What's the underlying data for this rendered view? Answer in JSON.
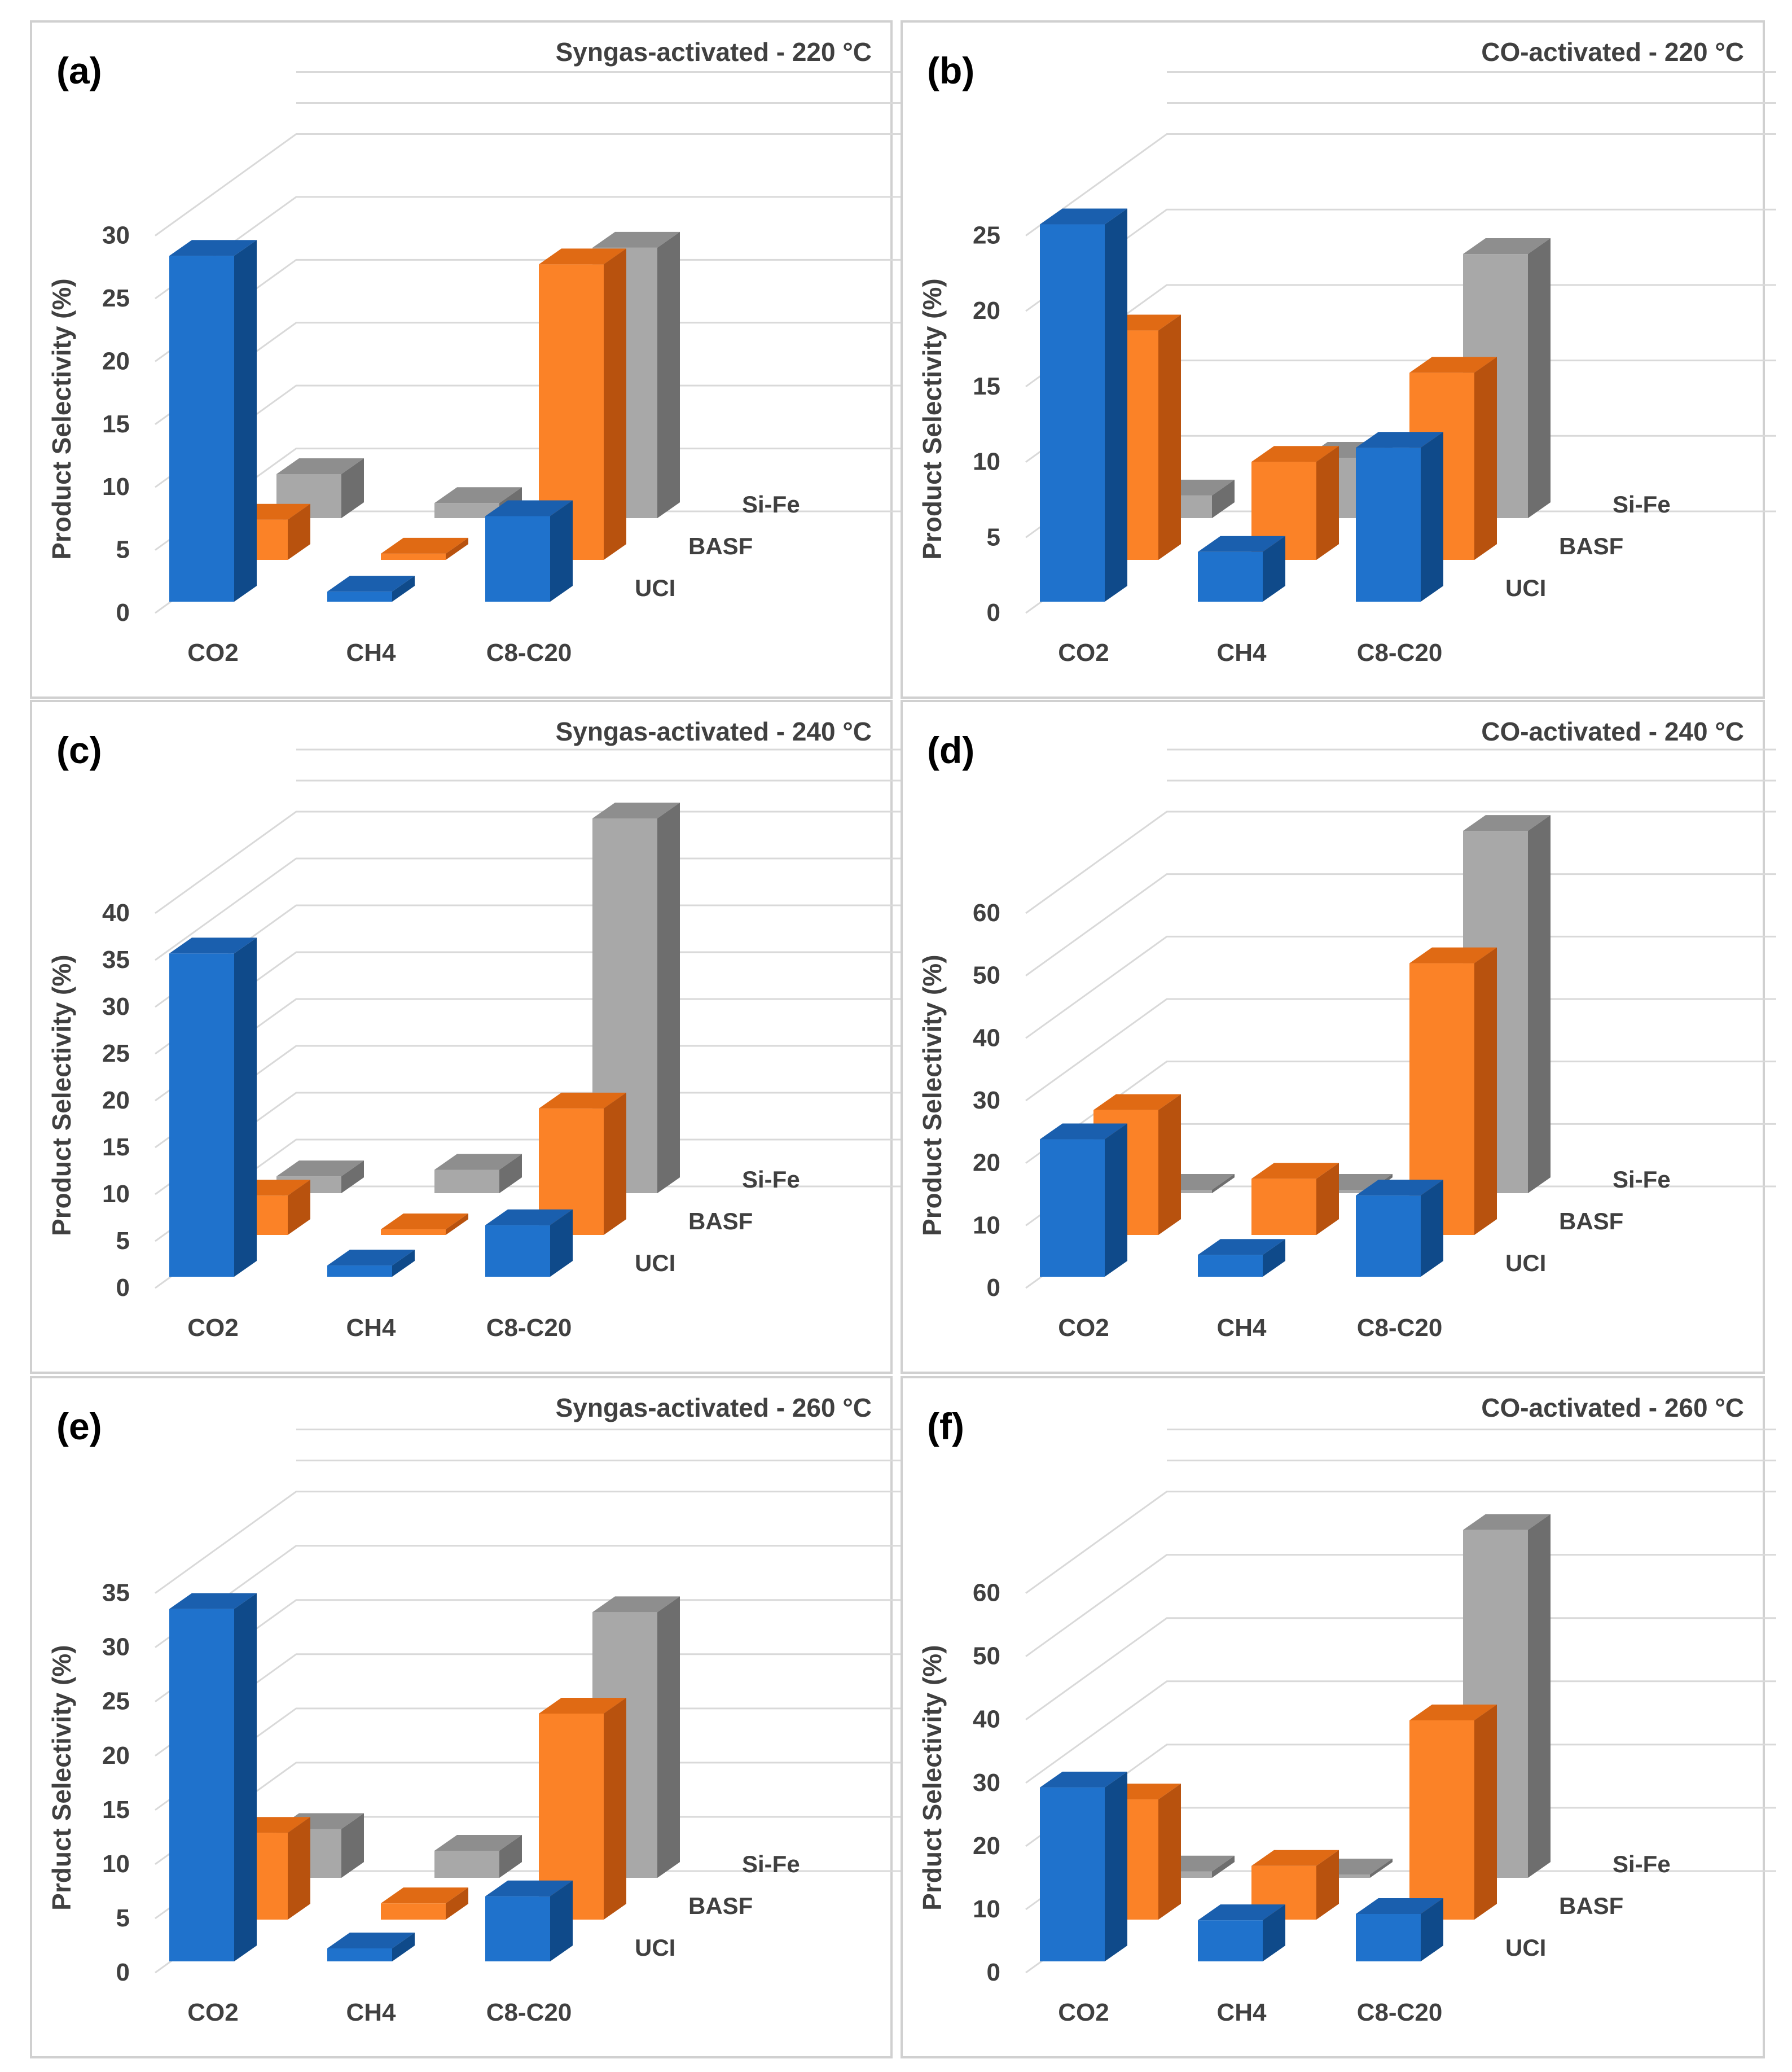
{
  "colors": {
    "UCI": {
      "front": "#1f72cc",
      "top": "#1a5fae",
      "side": "#0f4a8a"
    },
    "BASF": {
      "front": "#fb8227",
      "top": "#e06a14",
      "side": "#b8520e"
    },
    "Si-Fe": {
      "front": "#a8a8a8",
      "top": "#8e8e8e",
      "side": "#6e6e6e"
    }
  },
  "chart_data": [
    {
      "panel": "(a)",
      "type": "bar",
      "title": "Syngas-activated - 220 °C",
      "ylabel": "Product Selectivity (%)",
      "ylim": [
        0,
        30
      ],
      "yticks": [
        0,
        5,
        10,
        15,
        20,
        25,
        30
      ],
      "categories": [
        "CO2",
        "CH4",
        "C8-C20"
      ],
      "series": [
        {
          "name": "UCI",
          "values": [
            27.5,
            0.8,
            6.8
          ]
        },
        {
          "name": "BASF",
          "values": [
            3.2,
            0.5,
            23.5
          ]
        },
        {
          "name": "Si-Fe",
          "values": [
            3.5,
            1.2,
            21.5
          ]
        }
      ]
    },
    {
      "panel": "(b)",
      "type": "bar",
      "title": "CO-activated - 220 °C",
      "ylabel": "Product Selectivity (%)",
      "ylim": [
        0,
        25
      ],
      "yticks": [
        0,
        5,
        10,
        15,
        20,
        25
      ],
      "categories": [
        "CO2",
        "CH4",
        "C8-C20"
      ],
      "series": [
        {
          "name": "UCI",
          "values": [
            25,
            3.3,
            10.2
          ]
        },
        {
          "name": "BASF",
          "values": [
            15.2,
            6.5,
            12.4
          ]
        },
        {
          "name": "Si-Fe",
          "values": [
            1.5,
            4,
            17.5
          ]
        }
      ]
    },
    {
      "panel": "(c)",
      "type": "bar",
      "title": "Syngas-activated - 240 °C",
      "ylabel": "Product Selectivity (%)",
      "ylim": [
        0,
        40
      ],
      "yticks": [
        0,
        5,
        10,
        15,
        20,
        25,
        30,
        35,
        40
      ],
      "categories": [
        "CO2",
        "CH4",
        "C8-C20"
      ],
      "series": [
        {
          "name": "UCI",
          "values": [
            34.5,
            1.2,
            5.5
          ]
        },
        {
          "name": "BASF",
          "values": [
            4.2,
            0.6,
            13.5
          ]
        },
        {
          "name": "Si-Fe",
          "values": [
            1.8,
            2.5,
            40
          ]
        }
      ]
    },
    {
      "panel": "(d)",
      "type": "bar",
      "title": "CO-activated - 240 °C",
      "ylabel": "Product Selectivity (%)",
      "ylim": [
        0,
        60
      ],
      "yticks": [
        0,
        10,
        20,
        30,
        40,
        50,
        60
      ],
      "categories": [
        "CO2",
        "CH4",
        "C8-C20"
      ],
      "series": [
        {
          "name": "UCI",
          "values": [
            22,
            3.5,
            13
          ]
        },
        {
          "name": "BASF",
          "values": [
            20,
            9,
            43.5
          ]
        },
        {
          "name": "Si-Fe",
          "values": [
            0.5,
            0.5,
            58
          ]
        }
      ]
    },
    {
      "panel": "(e)",
      "type": "bar",
      "title": "Syngas-activated - 260 °C",
      "ylabel": "Prduct Selectivity (%)",
      "ylim": [
        0,
        35
      ],
      "yticks": [
        0,
        5,
        10,
        15,
        20,
        25,
        30,
        35
      ],
      "categories": [
        "CO2",
        "CH4",
        "C8-C20"
      ],
      "series": [
        {
          "name": "UCI",
          "values": [
            32.5,
            1.2,
            6
          ]
        },
        {
          "name": "BASF",
          "values": [
            8,
            1.5,
            19
          ]
        },
        {
          "name": "Si-Fe",
          "values": [
            4.5,
            2.5,
            24.5
          ]
        }
      ]
    },
    {
      "panel": "(f)",
      "type": "bar",
      "title": "CO-activated - 260 °C",
      "ylabel": "Prduct Selectivity (%)",
      "ylim": [
        0,
        60
      ],
      "yticks": [
        0,
        10,
        20,
        30,
        40,
        50,
        60
      ],
      "categories": [
        "CO2",
        "CH4",
        "C8-C20"
      ],
      "series": [
        {
          "name": "UCI",
          "values": [
            27.5,
            6.5,
            7.5
          ]
        },
        {
          "name": "BASF",
          "values": [
            19,
            8.5,
            31.5
          ]
        },
        {
          "name": "Si-Fe",
          "values": [
            1,
            0.5,
            55
          ]
        }
      ]
    }
  ]
}
